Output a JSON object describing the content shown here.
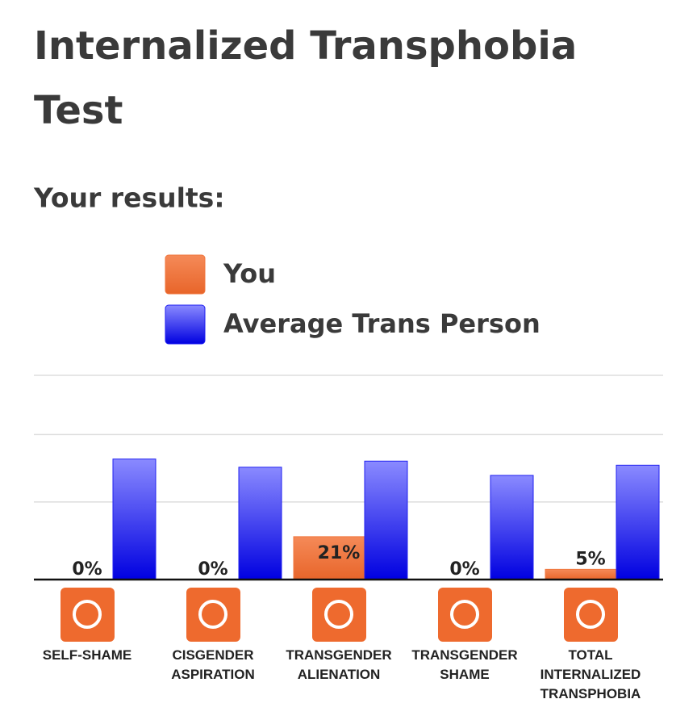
{
  "chart_data": {
    "type": "bar",
    "title": "Internalized Transphobia Test",
    "subtitle": "Your results:",
    "categories": [
      "SELF-SHAME",
      "CISGENDER ASPIRATION",
      "TRANSGENDER ALIENATION",
      "TRANSGENDER SHAME",
      "TOTAL INTERNALIZED TRANSPHOBIA"
    ],
    "series": [
      {
        "name": "You",
        "color": "#f0773f",
        "values": [
          0,
          0,
          21,
          0,
          5
        ],
        "value_labels": [
          "0%",
          "0%",
          "21%",
          "0%",
          "5%"
        ]
      },
      {
        "name": "Average Trans Person",
        "color": "#2020f0",
        "values": [
          59,
          55,
          58,
          51,
          56
        ]
      }
    ],
    "ylim": [
      0,
      100
    ],
    "yticks": [
      38,
      71,
      100
    ],
    "grid": true
  }
}
